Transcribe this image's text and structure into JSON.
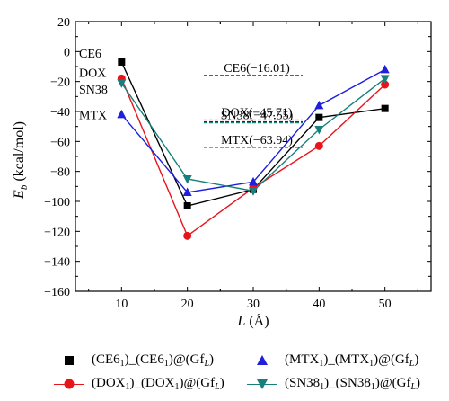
{
  "chart_data": {
    "type": "line",
    "ylabel_main": "E",
    "ylabel_sub": "b",
    "ylabel_unit": " (kcal/mol)",
    "xlabel_main": "L",
    "xlabel_unit": " (Å)",
    "x": [
      10,
      20,
      30,
      40,
      50
    ],
    "xlim": [
      3,
      57
    ],
    "ylim": [
      -160,
      20
    ],
    "xticks": [
      "10",
      "20",
      "30",
      "40",
      "50"
    ],
    "yticks": [
      "20",
      "0",
      "−20",
      "−40",
      "−60",
      "−80",
      "−100",
      "−120",
      "−140",
      "−160"
    ],
    "series": [
      {
        "key": "ce6",
        "color": "#000000",
        "marker": "square",
        "values": [
          -7,
          -103,
          -92,
          -44,
          -38
        ]
      },
      {
        "key": "dox",
        "color": "#e8141a",
        "marker": "circle",
        "values": [
          -18,
          -123,
          -91,
          -63,
          -22
        ]
      },
      {
        "key": "mtx",
        "color": "#1f1fdc",
        "marker": "triangle-up",
        "values": [
          -42,
          -94,
          -87,
          -36,
          -12
        ]
      },
      {
        "key": "sn38",
        "color": "#17807c",
        "marker": "triangle-down",
        "values": [
          -21,
          -85,
          -93,
          -52,
          -18
        ]
      }
    ],
    "start_labels": [
      {
        "text": "CE6",
        "y": -1
      },
      {
        "text": "DOX",
        "y": -14
      },
      {
        "text": "SN38",
        "y": -25
      },
      {
        "text": "MTX",
        "y": -42
      }
    ],
    "reference_lines": [
      {
        "label": "CE6(−16.01)",
        "y": -16.01,
        "colors": [
          "#000000"
        ]
      },
      {
        "label": "DOX(−45.71)",
        "y": -45.71,
        "colors": [
          "#e8141a",
          "#000000"
        ]
      },
      {
        "label": "SN38(−47.55)",
        "y": -47.55,
        "colors": [
          "#17807c"
        ]
      },
      {
        "label": "MTX(−63.94)",
        "y": -63.94,
        "colors": [
          "#1f1fdc"
        ]
      }
    ]
  },
  "legend": [
    {
      "key": "ce6",
      "color": "#000000",
      "marker": "square",
      "base1": "(CE6",
      "sub1": "1",
      "mid": ")_(CE6",
      "sub2": "1",
      "tail": ")@(Gf",
      "subL": "L",
      "close": ")"
    },
    {
      "key": "mtx",
      "color": "#1f1fdc",
      "marker": "triangle-up",
      "base1": "(MTX",
      "sub1": "1",
      "mid": ")_(MTX",
      "sub2": "1",
      "tail": ")@(Gf",
      "subL": "L",
      "close": ")"
    },
    {
      "key": "dox",
      "color": "#e8141a",
      "marker": "circle",
      "base1": "(DOX",
      "sub1": "1",
      "mid": ")_(DOX",
      "sub2": "1",
      "tail": ")@(Gf",
      "subL": "L",
      "close": ")"
    },
    {
      "key": "sn38",
      "color": "#17807c",
      "marker": "triangle-down",
      "base1": "(SN38",
      "sub1": "1",
      "mid": ")_(SN38",
      "sub2": "1",
      "tail": ")@(Gf",
      "subL": "L",
      "close": ")"
    }
  ]
}
